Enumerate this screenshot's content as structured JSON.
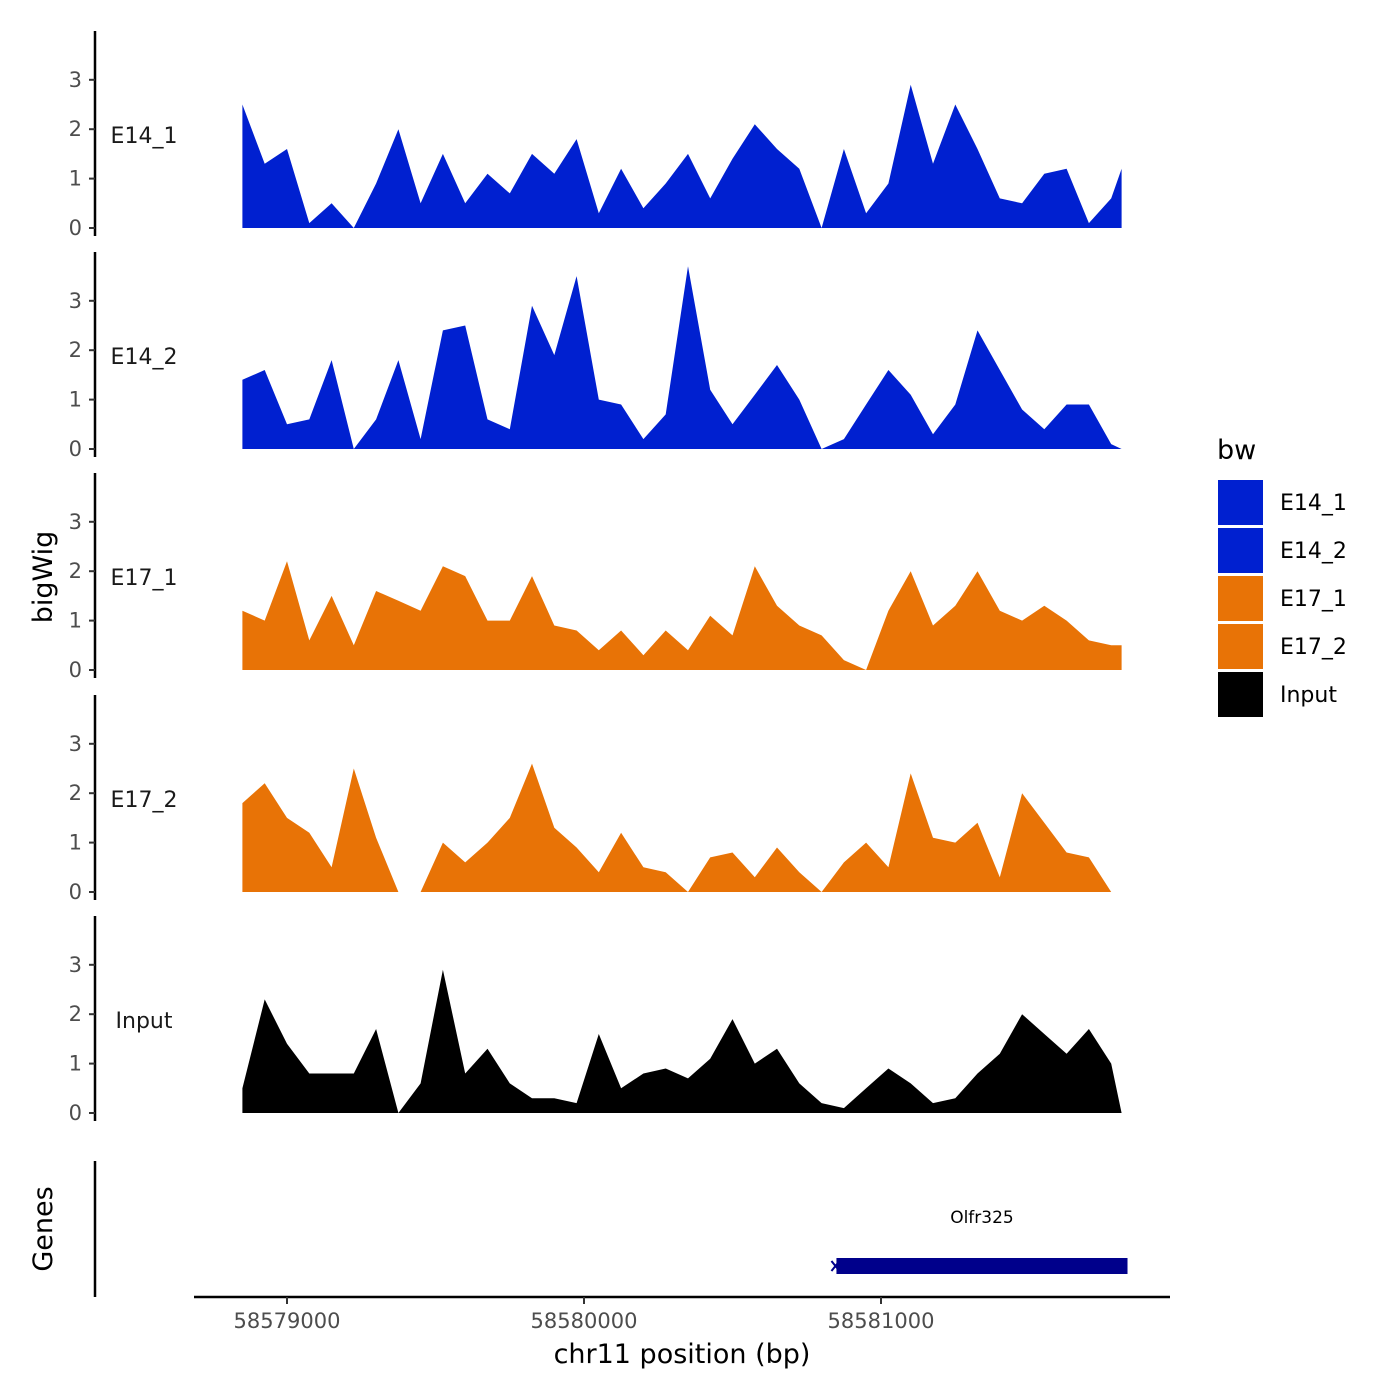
{
  "chart_data": {
    "type": "area",
    "xlabel": "chr11 position (bp)",
    "ylabel": "bigWig",
    "genes_label": "Genes",
    "xlim": [
      58578700,
      58582000
    ],
    "xticks": [
      58579000,
      58580000,
      58581000
    ],
    "xtick_labels": [
      "58579000",
      "58580000",
      "58581000"
    ],
    "ylim": [
      0,
      4
    ],
    "yticks": [
      0,
      1,
      2,
      3
    ],
    "ytick_labels": [
      "0",
      "1",
      "2",
      "3"
    ],
    "x": [
      58578850,
      58578925,
      58579000,
      58579075,
      58579150,
      58579225,
      58579300,
      58579375,
      58579450,
      58579525,
      58579600,
      58579675,
      58579750,
      58579825,
      58579900,
      58579975,
      58580050,
      58580125,
      58580200,
      58580275,
      58580350,
      58580425,
      58580500,
      58580575,
      58580650,
      58580725,
      58580800,
      58580875,
      58580950,
      58581025,
      58581100,
      58581175,
      58581250,
      58581325,
      58581400,
      58581475,
      58581550,
      58581625,
      58581700,
      58581775,
      58581810
    ],
    "series": [
      {
        "name": "E14_1",
        "label": "E14_1",
        "color": "#0020D0",
        "values": [
          2.5,
          1.3,
          1.6,
          0.1,
          0.5,
          0.0,
          0.9,
          2.0,
          0.5,
          1.5,
          0.5,
          1.1,
          0.7,
          1.5,
          1.1,
          1.8,
          0.3,
          1.2,
          0.4,
          0.9,
          1.5,
          0.6,
          1.4,
          2.1,
          1.6,
          1.2,
          0.0,
          1.6,
          0.3,
          0.9,
          2.9,
          1.3,
          2.5,
          1.6,
          0.6,
          0.5,
          1.1,
          1.2,
          0.1,
          0.6,
          1.2
        ]
      },
      {
        "name": "E14_2",
        "label": "E14_2",
        "color": "#0020D0",
        "values": [
          1.4,
          1.6,
          0.5,
          0.6,
          1.8,
          0.0,
          0.6,
          1.8,
          0.2,
          2.4,
          2.5,
          0.6,
          0.4,
          2.9,
          1.9,
          3.5,
          1.0,
          0.9,
          0.2,
          0.7,
          3.7,
          1.2,
          0.5,
          1.1,
          1.7,
          1.0,
          0.0,
          0.2,
          0.9,
          1.6,
          1.1,
          0.3,
          0.9,
          2.4,
          1.6,
          0.8,
          0.4,
          0.9,
          0.9,
          0.1,
          0.0
        ]
      },
      {
        "name": "E17_1",
        "label": "E17_1",
        "color": "#E87306",
        "values": [
          1.2,
          1.0,
          2.2,
          0.6,
          1.5,
          0.5,
          1.6,
          1.4,
          1.2,
          2.1,
          1.9,
          1.0,
          1.0,
          1.9,
          0.9,
          0.8,
          0.4,
          0.8,
          0.3,
          0.8,
          0.4,
          1.1,
          0.7,
          2.1,
          1.3,
          0.9,
          0.7,
          0.2,
          0.0,
          1.2,
          2.0,
          0.9,
          1.3,
          2.0,
          1.2,
          1.0,
          1.3,
          1.0,
          0.6,
          0.5,
          0.5
        ]
      },
      {
        "name": "E17_2",
        "label": "E17_2",
        "color": "#E87306",
        "values": [
          1.8,
          2.2,
          1.5,
          1.2,
          0.5,
          2.5,
          1.1,
          0.0,
          0.0,
          1.0,
          0.6,
          1.0,
          1.5,
          2.6,
          1.3,
          0.9,
          0.4,
          1.2,
          0.5,
          0.4,
          0.0,
          0.7,
          0.8,
          0.3,
          0.9,
          0.4,
          0.0,
          0.6,
          1.0,
          0.5,
          2.4,
          1.1,
          1.0,
          1.4,
          0.3,
          2.0,
          1.4,
          0.8,
          0.7,
          0.0,
          0.0
        ]
      },
      {
        "name": "Input",
        "label": "Input",
        "color": "#000000",
        "values": [
          0.5,
          2.3,
          1.4,
          0.8,
          0.8,
          0.8,
          1.7,
          0.0,
          0.6,
          2.9,
          0.8,
          1.3,
          0.6,
          0.3,
          0.3,
          0.2,
          1.6,
          0.5,
          0.8,
          0.9,
          0.7,
          1.1,
          1.9,
          1.0,
          1.3,
          0.6,
          0.2,
          0.1,
          0.5,
          0.9,
          0.6,
          0.2,
          0.3,
          0.8,
          1.2,
          2.0,
          1.6,
          1.2,
          1.7,
          1.0,
          0.0
        ]
      }
    ],
    "legend": {
      "title": "bw",
      "position": "right",
      "entries": [
        {
          "label": "E14_1",
          "color": "#0020D0"
        },
        {
          "label": "E14_2",
          "color": "#0020D0"
        },
        {
          "label": "E17_1",
          "color": "#E87306"
        },
        {
          "label": "E17_2",
          "color": "#E87306"
        },
        {
          "label": "Input",
          "color": "#000000"
        }
      ]
    },
    "genes": [
      {
        "name": "Olfr325",
        "start": 58580850,
        "end": 58581830,
        "color": "#00008B"
      }
    ]
  }
}
